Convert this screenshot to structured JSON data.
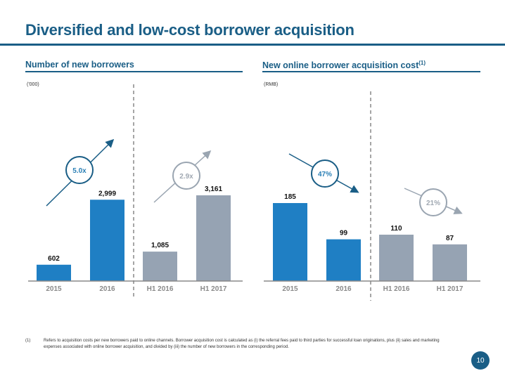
{
  "title": "Diversified and low-cost borrower acquisition",
  "left_section": {
    "title": "Number of new borrowers",
    "unit": "('000)"
  },
  "right_section": {
    "title": "New online borrower acquisition cost",
    "superscript": "(1)",
    "unit": "(RMB)"
  },
  "colors": {
    "primary": "#1a5e86",
    "bar_blue": "#1f7fc4",
    "bar_gray": "#96a3b3",
    "callout_gray": "#9aa5b1",
    "axis": "#888888"
  },
  "chart_data": [
    {
      "type": "bar",
      "title": "Number of new borrowers",
      "ylabel": "('000)",
      "categories": [
        "2015",
        "2016",
        "H1 2016",
        "H1 2017"
      ],
      "values": [
        602,
        2999,
        1085,
        3161
      ],
      "value_labels": [
        "602",
        "2,999",
        "1,085",
        "3,161"
      ],
      "bar_groups": [
        "annual",
        "annual",
        "half",
        "half"
      ],
      "ylim": [
        0,
        4500
      ],
      "grid": false,
      "annotations": [
        {
          "text": "5.0x",
          "direction": "up",
          "group": "annual"
        },
        {
          "text": "2.9x",
          "direction": "up",
          "group": "half"
        }
      ]
    },
    {
      "type": "bar",
      "title": "New online borrower acquisition cost",
      "ylabel": "(RMB)",
      "categories": [
        "2015",
        "2016",
        "H1 2016",
        "H1 2017"
      ],
      "values": [
        185,
        99,
        110,
        87
      ],
      "value_labels": [
        "185",
        "99",
        "110",
        "87"
      ],
      "bar_groups": [
        "annual",
        "annual",
        "half",
        "half"
      ],
      "ylim": [
        0,
        300
      ],
      "grid": false,
      "annotations": [
        {
          "text": "47%",
          "direction": "down",
          "group": "annual"
        },
        {
          "text": "21%",
          "direction": "down",
          "group": "half"
        }
      ]
    }
  ],
  "footnote": {
    "number": "(1)",
    "text": "Refers to acquisition costs per new borrowers paid to online channels. Borrower acquisition cost is calculated as (i) the referral fees paid to third parties for successful loan originations, plus (ii) sales and marketing expenses associated with online borrower acquisition, and divided by (iii) the number of new borrowers in the corresponding period."
  },
  "page_number": "10"
}
